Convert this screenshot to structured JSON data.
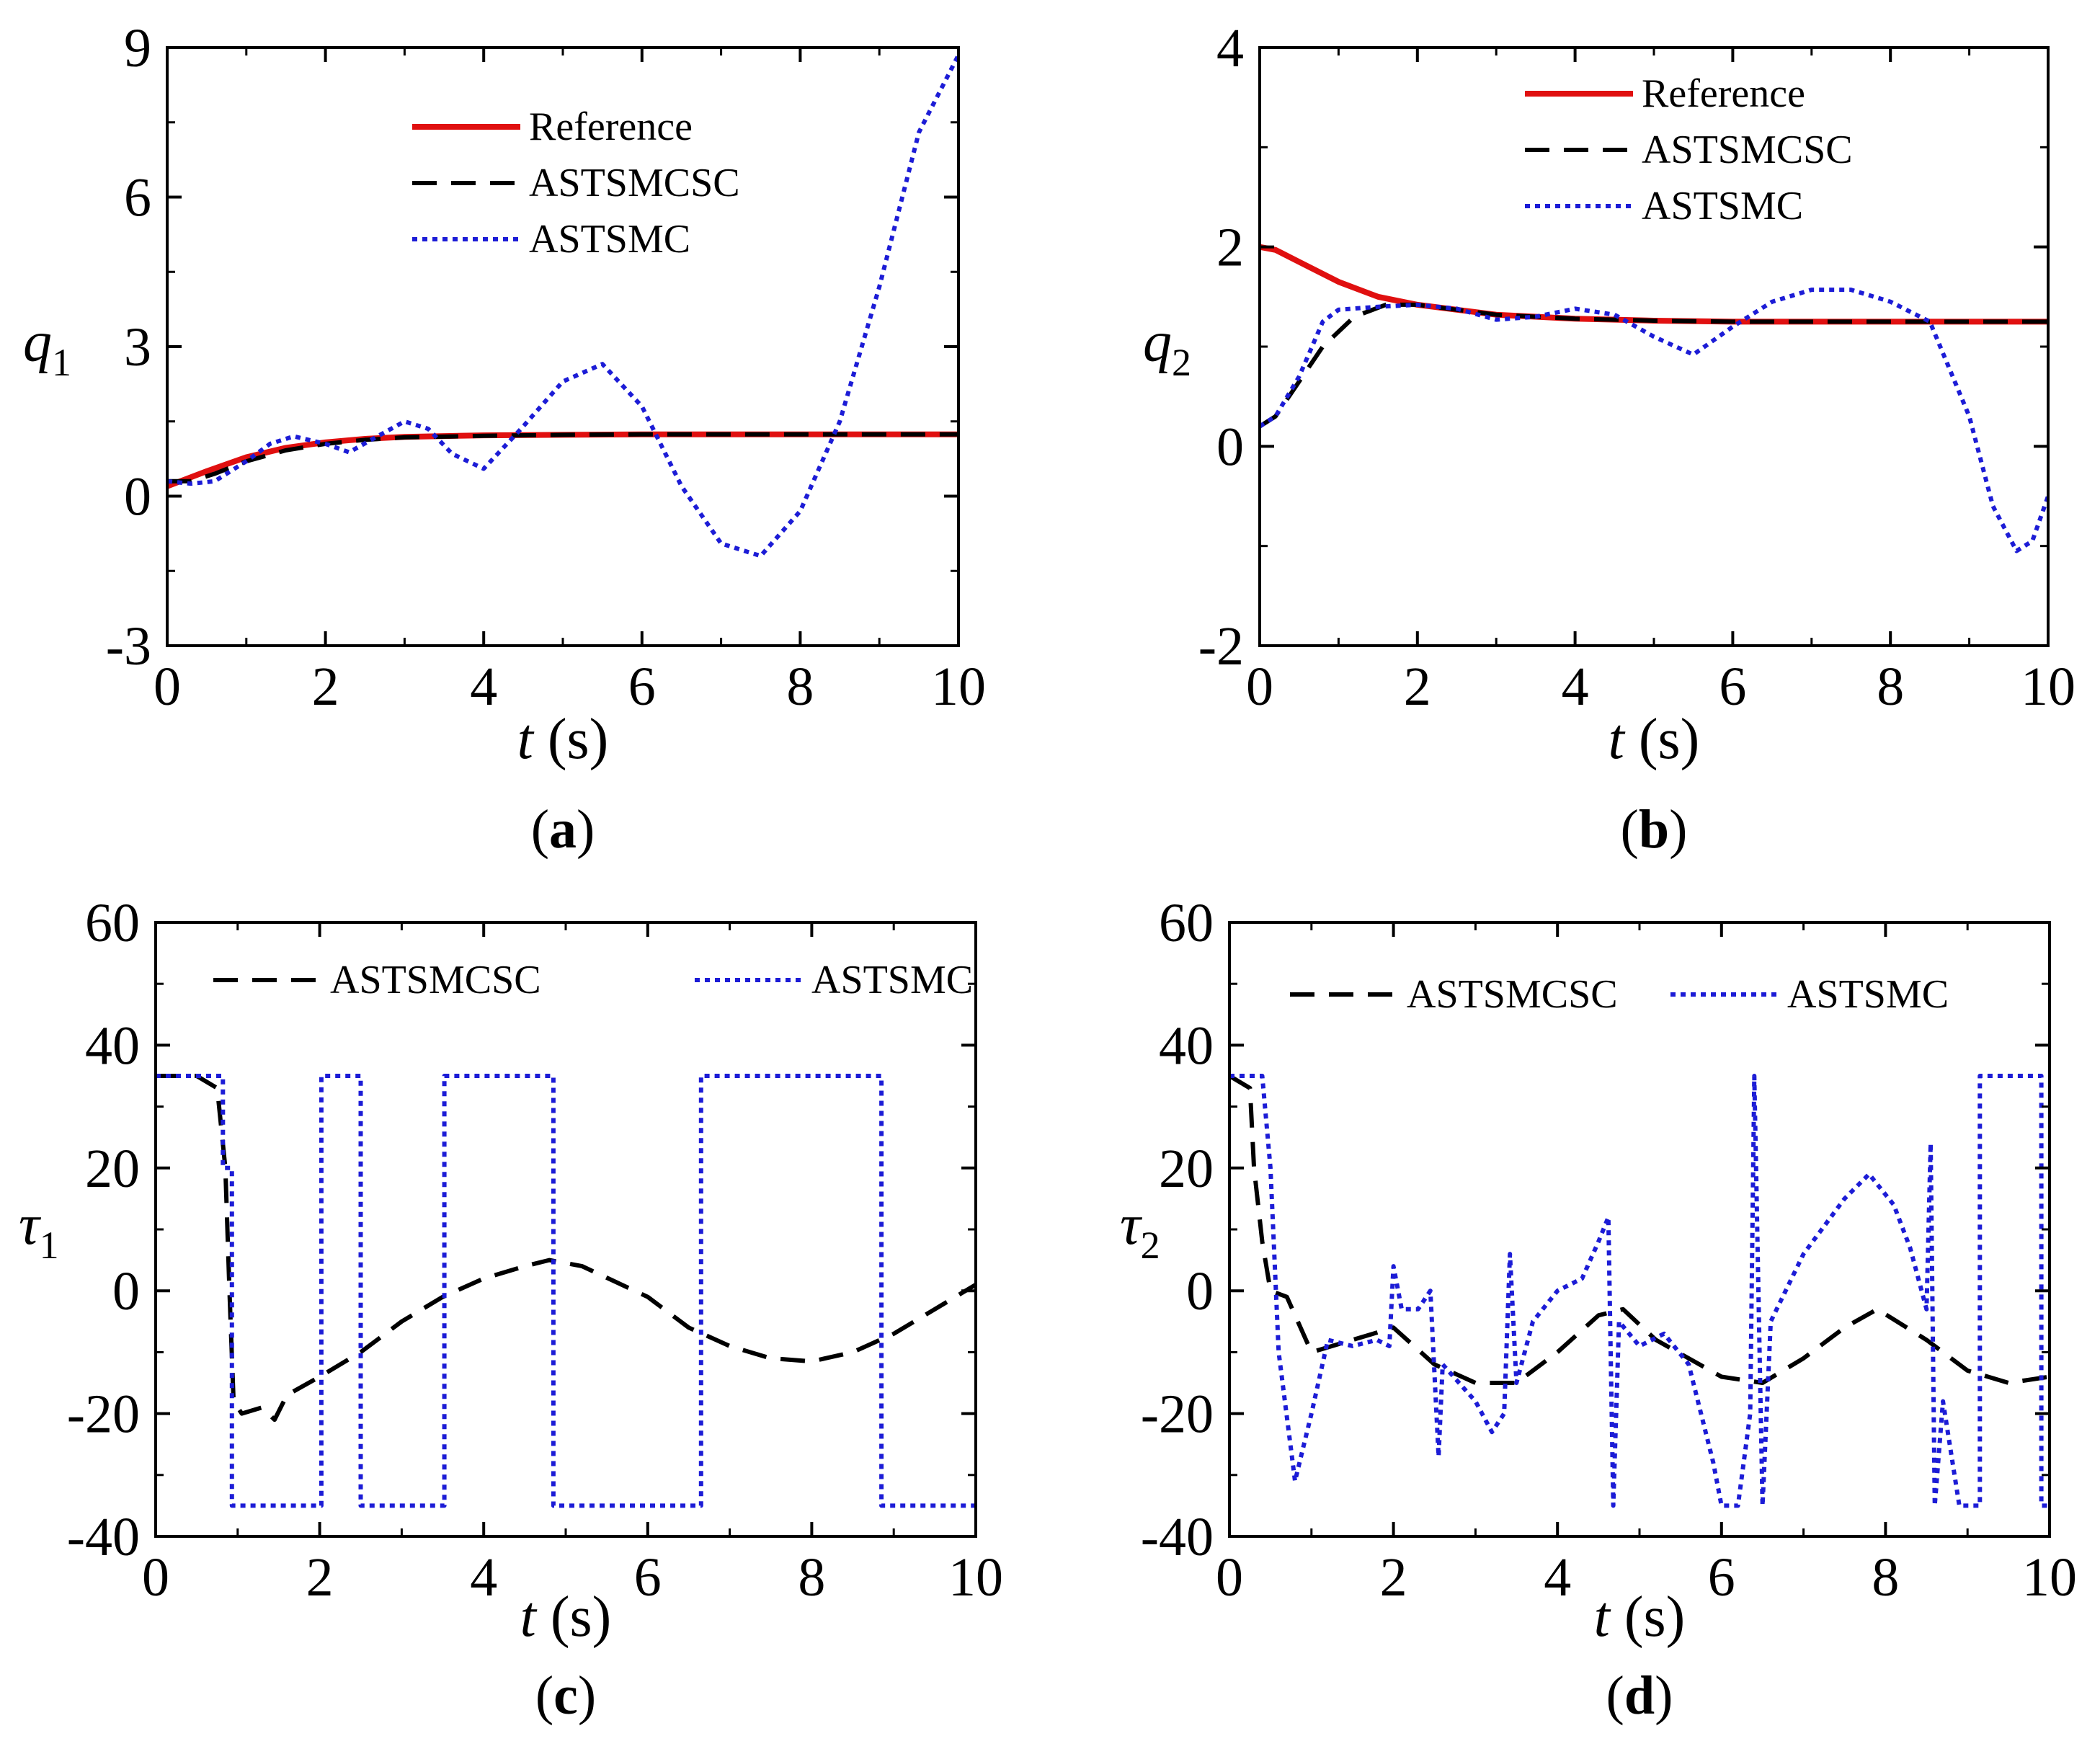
{
  "colors": {
    "reference": "#e01010",
    "astsmcsc": "#000000",
    "astsmc": "#1c1cd6"
  },
  "chart_data": [
    {
      "panel": "a",
      "caption": "a",
      "type": "line",
      "ylabel": "q",
      "ylabel_sub": "1",
      "xlabel_var": "t",
      "xlabel_unit": "(s)",
      "xlim": [
        0,
        10
      ],
      "ylim": [
        -3,
        9
      ],
      "xticks": [
        "0",
        "2",
        "4",
        "6",
        "8",
        "10"
      ],
      "yticks": [
        "-3",
        "0",
        "3",
        "6",
        "9"
      ],
      "legend": {
        "placement": "top-center",
        "entries": [
          "Reference",
          "ASTSMCSC",
          "ASTSMC"
        ]
      },
      "series": [
        {
          "name": "Reference",
          "style": "solid",
          "x": [
            0,
            0.5,
            1,
            1.5,
            2,
            2.5,
            3,
            4,
            5,
            6,
            7,
            8,
            9,
            10
          ],
          "y": [
            0.2,
            0.5,
            0.78,
            0.97,
            1.08,
            1.15,
            1.19,
            1.22,
            1.23,
            1.24,
            1.24,
            1.24,
            1.24,
            1.24
          ]
        },
        {
          "name": "ASTSMCSC",
          "style": "dashed",
          "x": [
            0,
            0.3,
            0.6,
            1,
            1.5,
            2,
            2.5,
            3,
            4,
            5,
            6,
            7,
            8,
            9,
            10
          ],
          "y": [
            0.3,
            0.3,
            0.45,
            0.7,
            0.92,
            1.05,
            1.13,
            1.18,
            1.21,
            1.23,
            1.24,
            1.24,
            1.24,
            1.24,
            1.24
          ]
        },
        {
          "name": "ASTSMC",
          "style": "dotted",
          "x": [
            0,
            0.3,
            0.6,
            1,
            1.3,
            1.6,
            2,
            2.3,
            2.6,
            3,
            3.3,
            3.6,
            4,
            4.5,
            5,
            5.5,
            6,
            6.5,
            7,
            7.5,
            8,
            8.5,
            9,
            9.5,
            10
          ],
          "y": [
            0.3,
            0.25,
            0.3,
            0.7,
            1.05,
            1.2,
            1.05,
            0.88,
            1.15,
            1.5,
            1.35,
            0.85,
            0.55,
            1.4,
            2.3,
            2.65,
            1.8,
            0.2,
            -0.95,
            -1.2,
            -0.3,
            1.5,
            4.2,
            7.3,
            8.85
          ]
        }
      ]
    },
    {
      "panel": "b",
      "caption": "b",
      "type": "line",
      "ylabel": "q",
      "ylabel_sub": "2",
      "xlabel_var": "t",
      "xlabel_unit": "(s)",
      "xlim": [
        0,
        10
      ],
      "ylim": [
        -2,
        4
      ],
      "xticks": [
        "0",
        "2",
        "4",
        "6",
        "8",
        "10"
      ],
      "yticks": [
        "-2",
        "0",
        "2",
        "4"
      ],
      "legend": {
        "placement": "top-center",
        "entries": [
          "Reference",
          "ASTSMCSC",
          "ASTSMC"
        ]
      },
      "series": [
        {
          "name": "Reference",
          "style": "solid",
          "x": [
            0,
            0.2,
            0.5,
            1,
            1.5,
            2,
            2.5,
            3,
            4,
            5,
            6,
            7,
            8,
            9,
            10
          ],
          "y": [
            2.0,
            1.97,
            1.85,
            1.65,
            1.5,
            1.42,
            1.37,
            1.32,
            1.28,
            1.26,
            1.25,
            1.25,
            1.25,
            1.25,
            1.25
          ]
        },
        {
          "name": "ASTSMCSC",
          "style": "dashed",
          "x": [
            0,
            0.2,
            0.5,
            0.8,
            1.2,
            1.6,
            2,
            2.5,
            3,
            4,
            5,
            6,
            7,
            8,
            9,
            10
          ],
          "y": [
            0.2,
            0.3,
            0.65,
            1.0,
            1.3,
            1.42,
            1.42,
            1.37,
            1.32,
            1.28,
            1.26,
            1.25,
            1.25,
            1.25,
            1.25,
            1.25
          ]
        },
        {
          "name": "ASTSMC",
          "style": "dotted",
          "x": [
            0,
            0.2,
            0.5,
            0.8,
            1,
            1.5,
            2,
            2.5,
            3,
            3.5,
            4,
            4.5,
            5,
            5.5,
            6,
            6.5,
            7,
            7.5,
            8,
            8.5,
            9,
            9.3,
            9.6,
            9.8,
            10
          ],
          "y": [
            0.2,
            0.3,
            0.7,
            1.25,
            1.37,
            1.4,
            1.42,
            1.38,
            1.27,
            1.3,
            1.38,
            1.32,
            1.1,
            0.92,
            1.2,
            1.45,
            1.57,
            1.57,
            1.45,
            1.25,
            0.3,
            -0.6,
            -1.05,
            -0.95,
            -0.5
          ]
        }
      ]
    },
    {
      "panel": "c",
      "caption": "c",
      "type": "line",
      "ylabel": "τ",
      "ylabel_sub": "1",
      "xlabel_var": "t",
      "xlabel_unit": "(s)",
      "xlim": [
        0,
        10
      ],
      "ylim": [
        -40,
        60
      ],
      "xticks": [
        "0",
        "2",
        "4",
        "6",
        "8",
        "10"
      ],
      "yticks": [
        "-40",
        "-20",
        "0",
        "20",
        "40",
        "60"
      ],
      "legend": {
        "placement": "top",
        "entries": [
          "ASTSMCSC",
          "ASTSMC"
        ]
      },
      "series": [
        {
          "name": "ASTSMCSC",
          "style": "dashed",
          "x": [
            0,
            0.5,
            0.75,
            0.85,
            0.9,
            0.95,
            1.05,
            1.3,
            1.45,
            1.6,
            2,
            2.5,
            3,
            3.5,
            4,
            4.5,
            4.8,
            5.2,
            6,
            6.5,
            7,
            7.5,
            8,
            8.5,
            9,
            9.5,
            10
          ],
          "y": [
            35,
            35,
            33,
            20,
            0,
            -18,
            -20,
            -19,
            -21,
            -17,
            -14,
            -10,
            -5,
            -1,
            2,
            4,
            5,
            4,
            -1,
            -6,
            -9,
            -11,
            -11.5,
            -10,
            -7,
            -3,
            1
          ]
        },
        {
          "name": "ASTSMC",
          "style": "dotted",
          "x": [
            0,
            0.82,
            0.82,
            0.93,
            0.93,
            2.02,
            2.02,
            2.5,
            2.5,
            3.52,
            3.52,
            4.85,
            4.85,
            6.65,
            6.65,
            8.85,
            8.85,
            10
          ],
          "y": [
            35,
            35,
            20,
            20,
            -35,
            -35,
            35,
            35,
            -35,
            -35,
            35,
            35,
            -35,
            -35,
            35,
            35,
            -35,
            -35
          ]
        }
      ]
    },
    {
      "panel": "d",
      "caption": "d",
      "type": "line",
      "ylabel": "τ",
      "ylabel_sub": "2",
      "xlabel_var": "t",
      "xlabel_unit": "(s)",
      "xlim": [
        0,
        10
      ],
      "ylim": [
        -40,
        60
      ],
      "xticks": [
        "0",
        "2",
        "4",
        "6",
        "8",
        "10"
      ],
      "yticks": [
        "-40",
        "-20",
        "0",
        "20",
        "40",
        "60"
      ],
      "legend": {
        "placement": "top",
        "entries": [
          "ASTSMCSC",
          "ASTSMC"
        ]
      },
      "series": [
        {
          "name": "ASTSMCSC",
          "style": "dashed",
          "x": [
            0,
            0.25,
            0.3,
            0.4,
            0.5,
            0.7,
            1,
            1.5,
            2,
            2.5,
            3,
            3.5,
            4,
            4.5,
            4.8,
            5.2,
            6,
            6.5,
            7,
            7.5,
            7.9,
            8.5,
            9,
            9.5,
            10
          ],
          "y": [
            35,
            33,
            20,
            8,
            0,
            -1,
            -10,
            -8,
            -6,
            -12,
            -15,
            -15,
            -10,
            -4,
            -3,
            -8,
            -14,
            -15,
            -11,
            -6,
            -3,
            -8,
            -13,
            -15,
            -14
          ]
        },
        {
          "name": "ASTSMC",
          "style": "dotted",
          "x": [
            0,
            0.4,
            0.5,
            0.6,
            0.8,
            1.0,
            1.2,
            1.5,
            1.8,
            1.95,
            2.0,
            2.1,
            2.3,
            2.45,
            2.55,
            2.6,
            2.8,
            3.0,
            3.2,
            3.35,
            3.42,
            3.5,
            3.7,
            4.0,
            4.3,
            4.5,
            4.62,
            4.68,
            4.75,
            5.0,
            5.3,
            5.6,
            5.9,
            6.0,
            6.2,
            6.35,
            6.4,
            6.5,
            6.6,
            7.0,
            7.5,
            7.8,
            8.1,
            8.3,
            8.5,
            8.55,
            8.6,
            8.7,
            8.9,
            9.15,
            9.15,
            9.9,
            9.9,
            10
          ],
          "y": [
            35,
            35,
            20,
            -10,
            -31,
            -20,
            -8,
            -9,
            -8,
            -9,
            4,
            -3,
            -3,
            0,
            -27,
            -12,
            -15,
            -18,
            -23,
            -20,
            6,
            -15,
            -5,
            0,
            2,
            8,
            12,
            -35,
            -5,
            -9,
            -7,
            -12,
            -28,
            -35,
            -35,
            -20,
            35,
            -35,
            -5,
            6,
            15,
            19,
            14,
            7,
            -3,
            24,
            -35,
            -18,
            -35,
            -35,
            35,
            35,
            -35,
            -35
          ]
        }
      ]
    }
  ]
}
